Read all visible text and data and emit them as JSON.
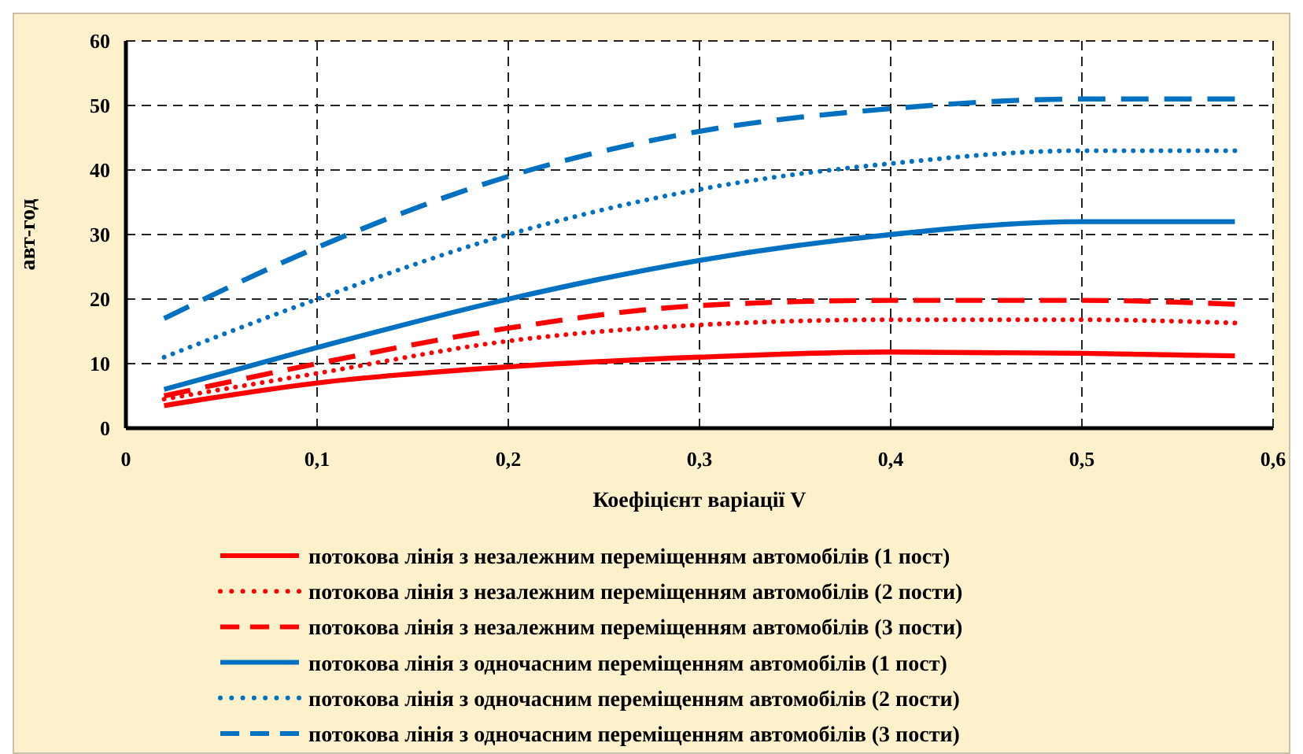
{
  "chart_data": {
    "type": "line",
    "xlabel": "Коефіцієнт варіації V",
    "ylabel": "авт-год",
    "x": [
      0.02,
      0.1,
      0.2,
      0.3,
      0.4,
      0.5,
      0.58
    ],
    "xlim": [
      0,
      0.6
    ],
    "xticks": [
      0,
      {
        "value": 0.1,
        "label": "0,1"
      },
      {
        "value": 0.2,
        "label": "0,2"
      },
      {
        "value": 0.3,
        "label": "0,3"
      },
      {
        "value": 0.4,
        "label": "0,4"
      },
      {
        "value": 0.5,
        "label": "0,5"
      },
      {
        "value": 0.6,
        "label": "0,6"
      }
    ],
    "ylim": [
      0,
      60
    ],
    "yticks": [
      0,
      10,
      20,
      30,
      40,
      50,
      60
    ],
    "grid": true,
    "legend": "bottom",
    "marker": "none",
    "series": [
      {
        "name": "потокова лінія з незалежним переміщенням автомобілів (1 пост)",
        "color": "#ff0000",
        "line_style": "solid",
        "values": [
          3.5,
          7,
          9.5,
          11,
          11.8,
          11.6,
          11.2
        ]
      },
      {
        "name": "потокова лінія з незалежним переміщенням автомобілів (2 пости)",
        "color": "#ff0000",
        "line_style": "dotted",
        "values": [
          4.5,
          8.5,
          13.5,
          16,
          16.8,
          16.8,
          16.3
        ]
      },
      {
        "name": "потокова лінія з незалежним переміщенням автомобілів (3 пости)",
        "color": "#ff0000",
        "line_style": "dashed",
        "values": [
          5,
          10,
          15.5,
          19,
          19.8,
          19.8,
          19.2
        ]
      },
      {
        "name": "потокова лінія з одночасним переміщенням автомобілів (1 пост)",
        "color": "#0070c0",
        "line_style": "solid",
        "values": [
          6,
          12.5,
          20,
          26,
          30,
          32,
          32
        ]
      },
      {
        "name": "потокова лінія з одночасним переміщенням автомобілів (2 пости)",
        "color": "#0070c0",
        "line_style": "dotted",
        "values": [
          11,
          20,
          30,
          37,
          41,
          43,
          43
        ]
      },
      {
        "name": "потокова лінія з одночасним переміщенням автомобілів (3 пости)",
        "color": "#0070c0",
        "line_style": "dashed",
        "values": [
          17,
          28,
          39,
          46,
          49.5,
          51,
          51
        ]
      }
    ]
  }
}
